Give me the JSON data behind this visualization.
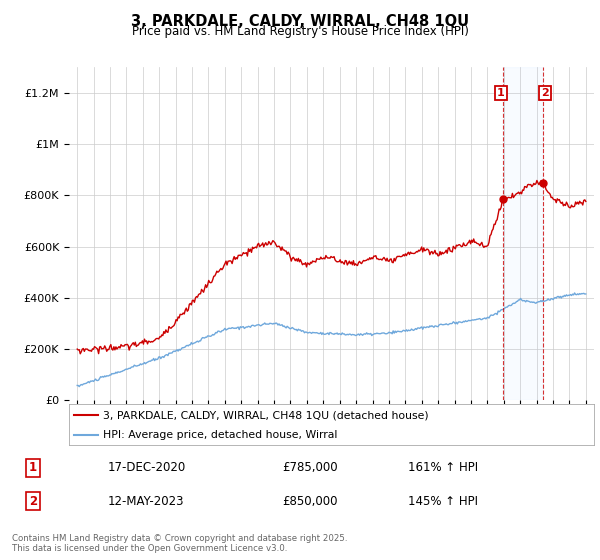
{
  "title": "3, PARKDALE, CALDY, WIRRAL, CH48 1QU",
  "subtitle": "Price paid vs. HM Land Registry's House Price Index (HPI)",
  "ylim": [
    0,
    1300000
  ],
  "yticks": [
    0,
    200000,
    400000,
    600000,
    800000,
    1000000,
    1200000
  ],
  "ytick_labels": [
    "£0",
    "£200K",
    "£400K",
    "£600K",
    "£800K",
    "£1M",
    "£1.2M"
  ],
  "hpi_color": "#6fa8dc",
  "price_color": "#cc0000",
  "annotation1_date": "17-DEC-2020",
  "annotation1_price": "£785,000",
  "annotation1_hpi": "161% ↑ HPI",
  "annotation2_date": "12-MAY-2023",
  "annotation2_price": "£850,000",
  "annotation2_hpi": "145% ↑ HPI",
  "legend_label1": "3, PARKDALE, CALDY, WIRRAL, CH48 1QU (detached house)",
  "legend_label2": "HPI: Average price, detached house, Wirral",
  "footer": "Contains HM Land Registry data © Crown copyright and database right 2025.\nThis data is licensed under the Open Government Licence v3.0.",
  "background_color": "#ffffff",
  "grid_color": "#cccccc",
  "sale1_x": 2020.96,
  "sale1_y": 785000,
  "sale2_x": 2023.37,
  "sale2_y": 850000,
  "xmin": 1994.5,
  "xmax": 2026.5
}
